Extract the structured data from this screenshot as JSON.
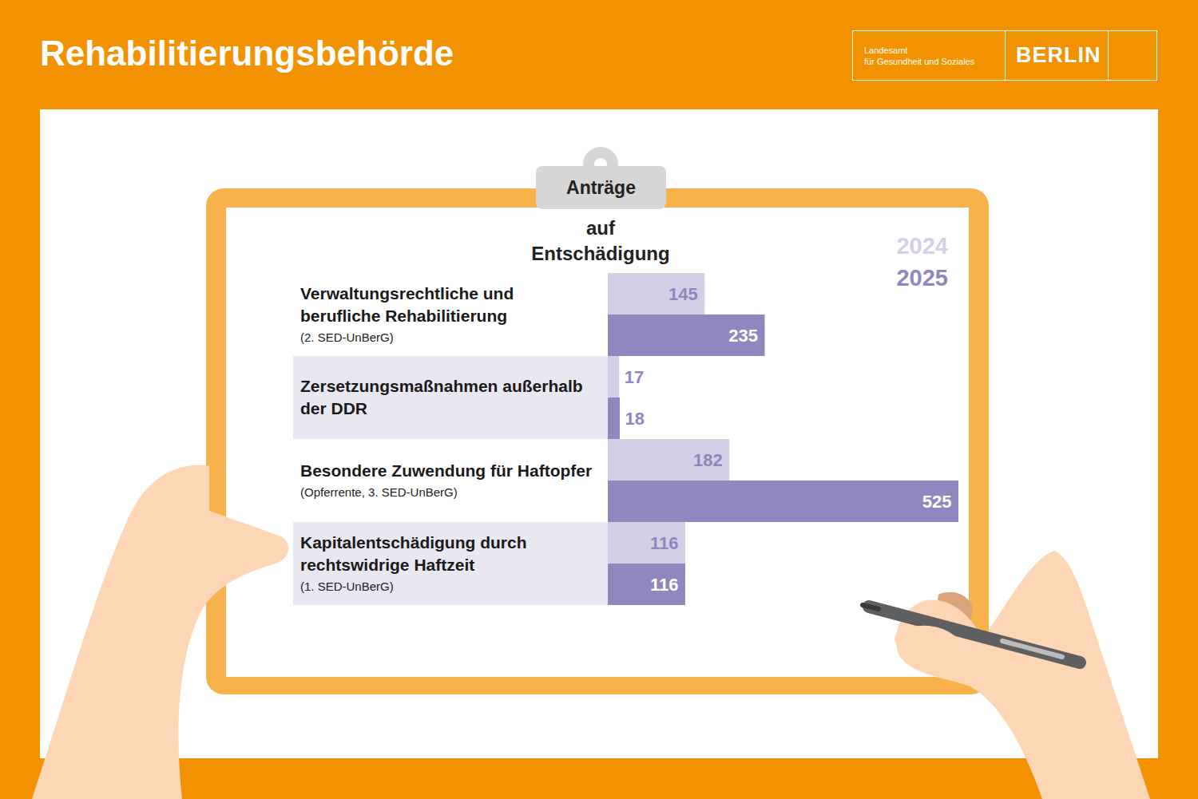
{
  "header": {
    "title": "Rehabilitierungsbehörde",
    "agency": "Landesamt für Gesundheit und Soziales",
    "city": "BERLIN"
  },
  "chart_data": {
    "type": "bar",
    "orientation": "horizontal",
    "title": "Anträge auf Entschädigung",
    "categories": [
      "Verwaltungsrechtliche und berufliche Rehabilitierung",
      "Zersetzungsmaßnahmen außerhalb der DDR",
      "Besondere Zuwendung für Haftopfer",
      "Kapitalentschädigung durch rechtswidrige Haftzeit"
    ],
    "category_notes": [
      "(2. SED-UnBerG)",
      null,
      "(Opferrente, 3. SED-UnBerG)",
      "(1. SED-UnBerG)"
    ],
    "series": [
      {
        "name": "2024",
        "color": "#d3cfe5",
        "values": [
          145,
          17,
          182,
          116
        ]
      },
      {
        "name": "2025",
        "color": "#8f87bd",
        "values": [
          235,
          18,
          525,
          116
        ]
      }
    ],
    "xlim": [
      0,
      525
    ],
    "data_labels": true,
    "tick_labels": false,
    "legend": "top-right"
  }
}
